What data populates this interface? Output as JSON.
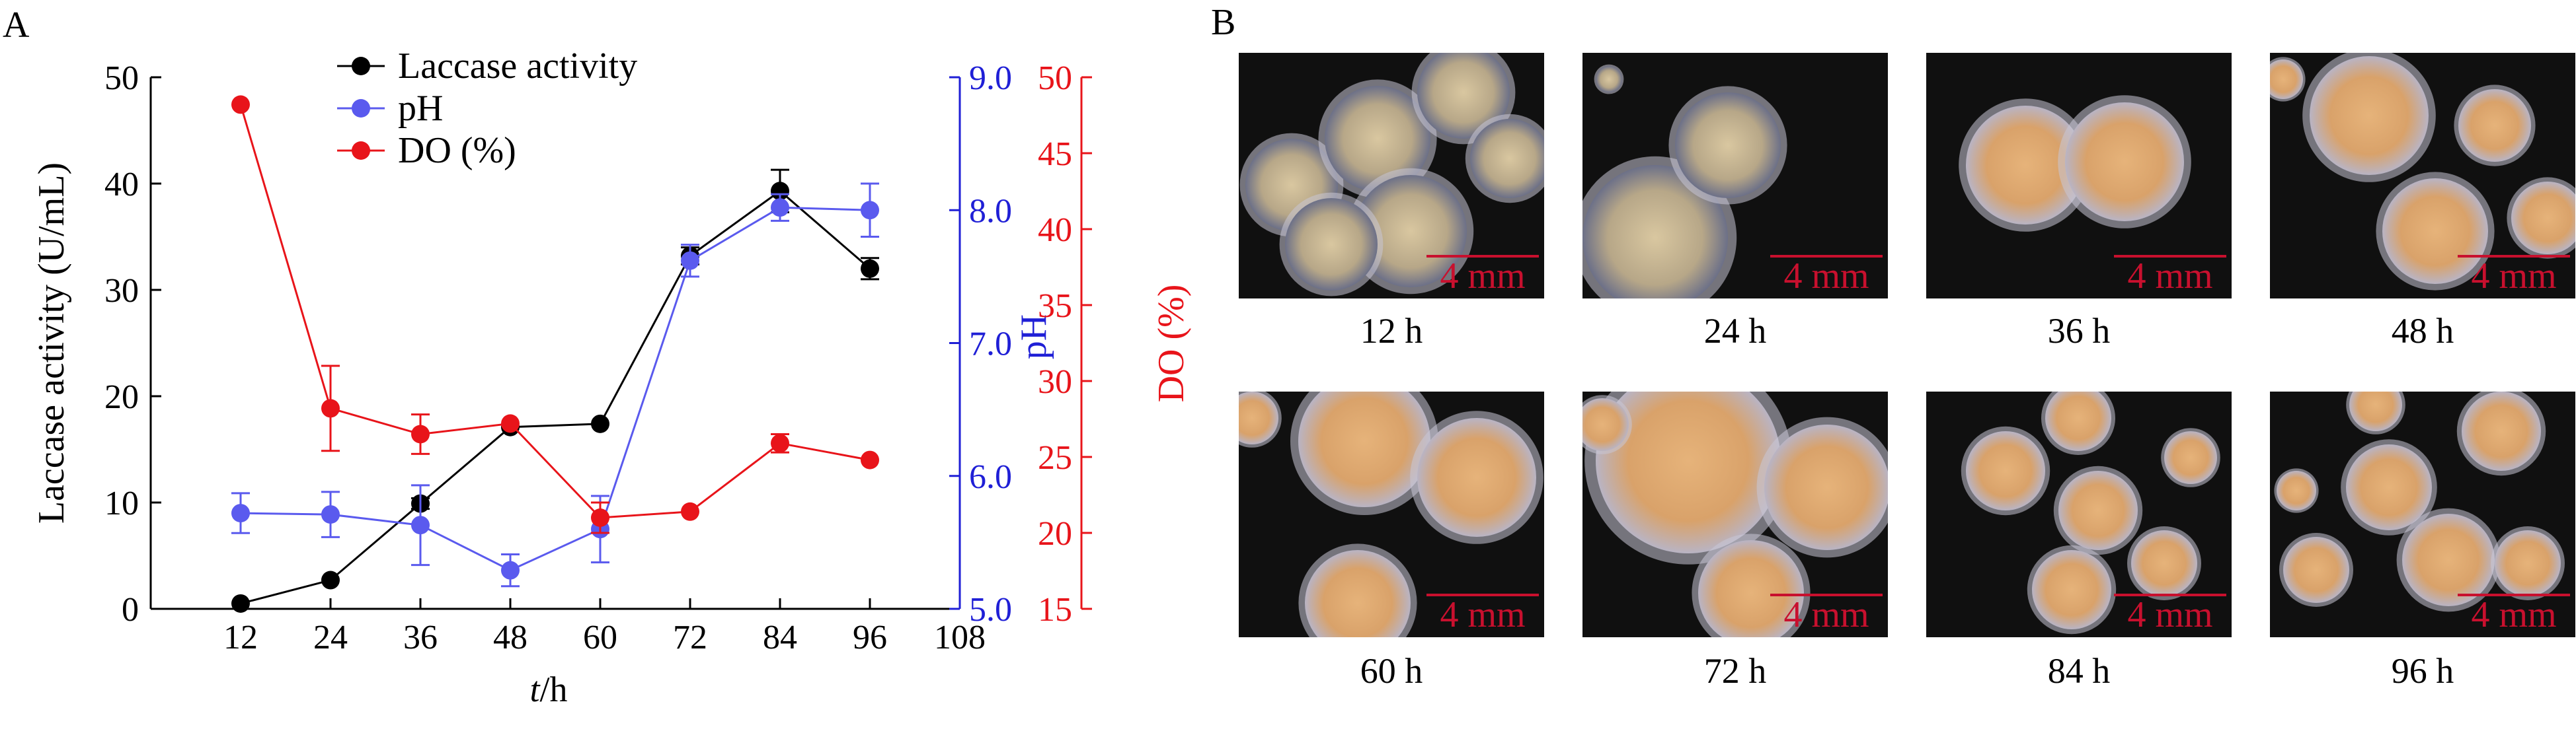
{
  "panels": {
    "a": "A",
    "b": "B"
  },
  "chart_data": {
    "type": "line",
    "x": [
      12,
      24,
      36,
      48,
      60,
      72,
      84,
      96
    ],
    "xlabel_italic": "t",
    "xlabel_rest": "/h",
    "xlim": [
      0,
      108
    ],
    "xticks": [
      "12",
      "24",
      "36",
      "48",
      "60",
      "72",
      "84",
      "96",
      "108"
    ],
    "grid": false,
    "legend_position": "top",
    "axes": {
      "left": {
        "label": "Laccase activity (U/mL)",
        "range": [
          0,
          50
        ],
        "ticks": [
          "0",
          "10",
          "20",
          "30",
          "40",
          "50"
        ],
        "color": "#000000"
      },
      "right1": {
        "label": "pH",
        "range": [
          5.0,
          9.0
        ],
        "ticks": [
          "5.0",
          "6.0",
          "7.0",
          "8.0",
          "9.0"
        ],
        "color": "#1f1fd6"
      },
      "right2": {
        "label": "DO (%)",
        "range": [
          15,
          50
        ],
        "ticks": [
          "15",
          "20",
          "25",
          "30",
          "35",
          "40",
          "45",
          "50"
        ],
        "color": "#e8141a"
      }
    },
    "series": [
      {
        "name": "Laccase activity",
        "axis": "left",
        "color": "#000000",
        "values": [
          0.5,
          2.7,
          9.9,
          17.1,
          17.4,
          33.2,
          39.3,
          32.0
        ],
        "errors": [
          0,
          0,
          0.5,
          0,
          0,
          0.8,
          2.0,
          1.0
        ]
      },
      {
        "name": "pH",
        "axis": "right1",
        "color": "#5a5aee",
        "values": [
          5.72,
          5.71,
          5.63,
          5.29,
          5.6,
          7.62,
          8.02,
          8.0
        ],
        "errors": [
          0.15,
          0.17,
          0.3,
          0.12,
          0.25,
          0.12,
          0.1,
          0.2
        ]
      },
      {
        "name": "DO (%)",
        "axis": "right2",
        "color": "#e8141a",
        "values": [
          48.2,
          28.2,
          26.5,
          27.2,
          21.0,
          21.4,
          25.9,
          24.8
        ],
        "errors": [
          0,
          2.8,
          1.3,
          0,
          1.0,
          0,
          0.6,
          0
        ]
      }
    ]
  },
  "photos": [
    {
      "time": "12 h",
      "scale": "4 mm"
    },
    {
      "time": "24 h",
      "scale": "4 mm"
    },
    {
      "time": "36 h",
      "scale": "4 mm"
    },
    {
      "time": "48 h",
      "scale": "4 mm"
    },
    {
      "time": "60 h",
      "scale": "4 mm"
    },
    {
      "time": "72 h",
      "scale": "4 mm"
    },
    {
      "time": "84 h",
      "scale": "4 mm"
    },
    {
      "time": "96 h",
      "scale": "4 mm"
    }
  ]
}
